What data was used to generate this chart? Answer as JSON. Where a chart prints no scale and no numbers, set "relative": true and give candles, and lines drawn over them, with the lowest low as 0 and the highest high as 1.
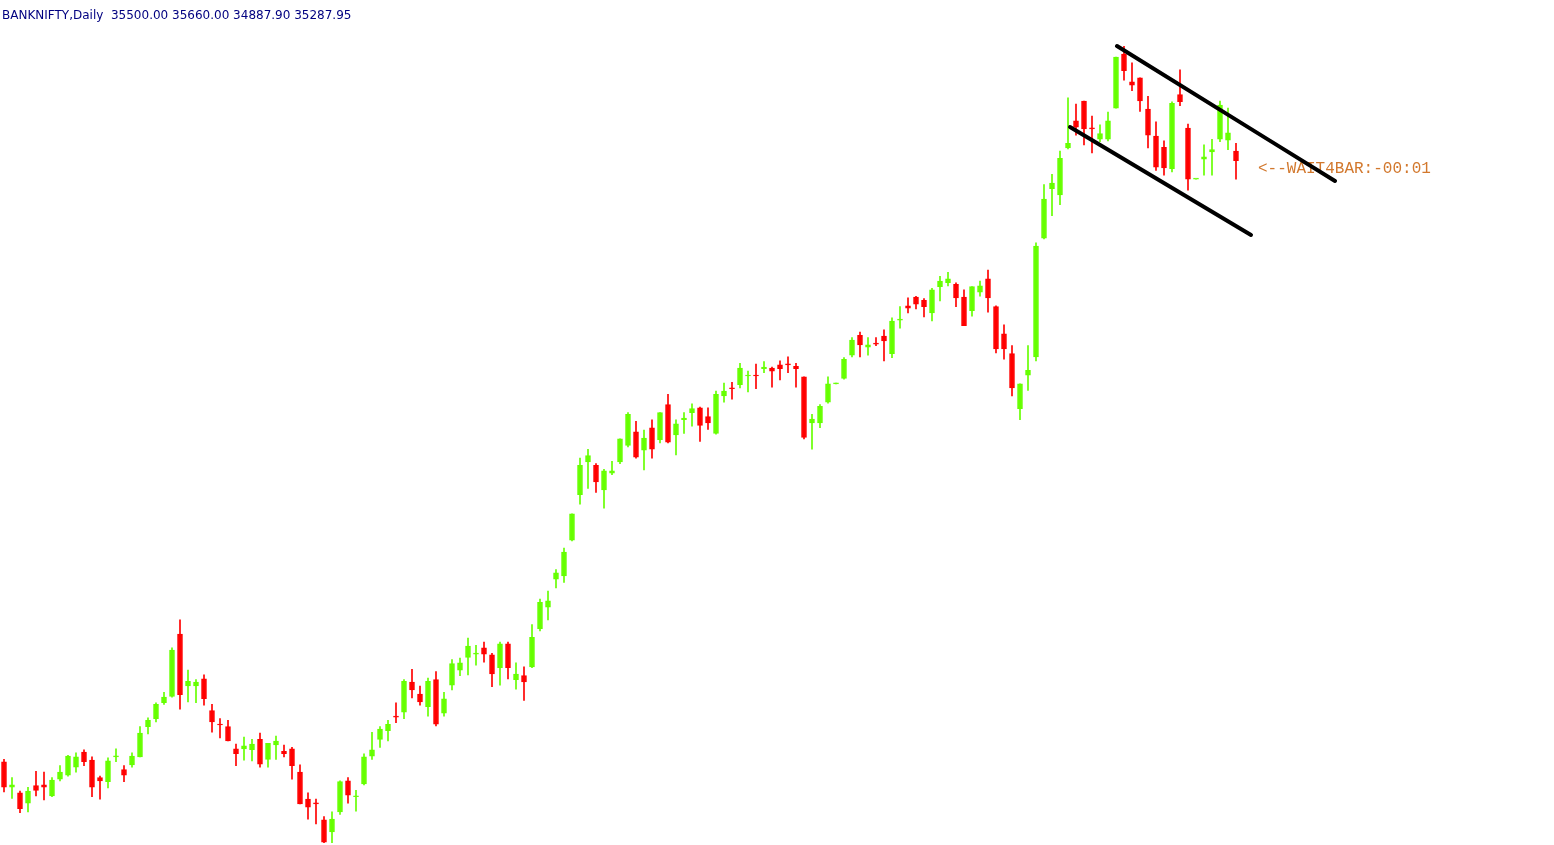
{
  "chart_data": {
    "type": "candlestick",
    "title": "BANKNIFTY,Daily  35500.00 35660.00 34887.90 35287.95",
    "annotations": [
      "<--WAIT4BAR:-00:01"
    ],
    "relative": true,
    "categories": [
      null,
      null,
      null,
      null,
      null,
      null,
      null,
      null,
      null,
      null,
      null,
      null,
      null,
      null,
      null,
      null,
      null,
      null,
      null,
      null,
      null,
      null,
      null,
      null,
      null,
      null,
      null,
      null,
      null,
      null,
      null,
      null,
      null,
      null,
      null,
      null,
      null,
      null,
      null,
      null,
      null,
      null,
      null,
      null,
      null,
      null,
      null,
      null,
      null,
      null,
      null,
      null,
      null,
      null,
      null,
      null,
      null,
      null,
      null,
      null,
      null,
      null,
      null,
      null,
      null,
      null,
      null,
      null,
      null,
      null,
      null,
      null,
      null,
      null,
      null,
      null,
      null,
      null,
      null,
      null,
      null,
      null,
      null,
      null,
      null,
      null,
      null,
      null,
      null,
      null,
      null,
      null,
      null,
      null,
      null,
      null,
      null,
      null,
      null,
      null,
      null,
      null,
      null,
      null,
      null,
      null,
      null,
      null,
      null,
      null,
      null,
      null,
      null,
      null,
      null,
      null,
      null,
      null,
      null,
      null,
      null,
      null,
      null,
      null,
      null,
      null,
      null,
      null,
      null,
      null,
      null,
      null,
      null,
      null,
      null,
      null,
      null,
      null,
      null,
      null,
      null,
      null,
      null,
      null,
      null,
      null,
      null,
      null,
      null,
      null,
      null,
      null,
      null,
      null,
      null
    ],
    "ohlc": [
      [
        0.102,
        0.105,
        0.064,
        0.07
      ],
      [
        0.07,
        0.082,
        0.056,
        0.073
      ],
      [
        0.063,
        0.065,
        0.038,
        0.043
      ],
      [
        0.05,
        0.07,
        0.039,
        0.065
      ],
      [
        0.072,
        0.09,
        0.059,
        0.066
      ],
      [
        0.073,
        0.089,
        0.054,
        0.07
      ],
      [
        0.059,
        0.082,
        0.058,
        0.079
      ],
      [
        0.08,
        0.097,
        0.078,
        0.089
      ],
      [
        0.085,
        0.11,
        0.084,
        0.109
      ],
      [
        0.095,
        0.113,
        0.089,
        0.108
      ],
      [
        0.114,
        0.117,
        0.097,
        0.102
      ],
      [
        0.104,
        0.108,
        0.058,
        0.07
      ],
      [
        0.082,
        0.084,
        0.055,
        0.078
      ],
      [
        0.077,
        0.107,
        0.069,
        0.103
      ],
      [
        0.108,
        0.118,
        0.102,
        0.109
      ],
      [
        0.092,
        0.097,
        0.077,
        0.085
      ],
      [
        0.098,
        0.113,
        0.095,
        0.109
      ],
      [
        0.108,
        0.146,
        0.108,
        0.138
      ],
      [
        0.146,
        0.157,
        0.137,
        0.154
      ],
      [
        0.156,
        0.176,
        0.152,
        0.174
      ],
      [
        0.176,
        0.189,
        0.174,
        0.183
      ],
      [
        0.184,
        0.245,
        0.183,
        0.242
      ],
      [
        0.262,
        0.28,
        0.168,
        0.186
      ],
      [
        0.197,
        0.217,
        0.177,
        0.203
      ],
      [
        0.197,
        0.205,
        0.176,
        0.202
      ],
      [
        0.206,
        0.211,
        0.173,
        0.181
      ],
      [
        0.166,
        0.174,
        0.139,
        0.152
      ],
      [
        0.149,
        0.156,
        0.132,
        0.148
      ],
      [
        0.146,
        0.154,
        0.128,
        0.128
      ],
      [
        0.118,
        0.124,
        0.097,
        0.112
      ],
      [
        0.118,
        0.133,
        0.104,
        0.122
      ],
      [
        0.117,
        0.13,
        0.103,
        0.124
      ],
      [
        0.13,
        0.138,
        0.095,
        0.099
      ],
      [
        0.105,
        0.125,
        0.095,
        0.125
      ],
      [
        0.123,
        0.134,
        0.105,
        0.128
      ],
      [
        0.115,
        0.123,
        0.108,
        0.112
      ],
      [
        0.118,
        0.12,
        0.08,
        0.097
      ],
      [
        0.089,
        0.098,
        0.049,
        0.049
      ],
      [
        0.055,
        0.063,
        0.03,
        0.045
      ],
      [
        0.05,
        0.055,
        0.024,
        0.049
      ],
      [
        0.029,
        0.033,
        0,
        0.001
      ],
      [
        0.014,
        0.039,
        0,
        0.03
      ],
      [
        0.039,
        0.078,
        0.036,
        0.077
      ],
      [
        0.078,
        0.082,
        0.05,
        0.06
      ],
      [
        0.058,
        0.066,
        0.04,
        0.059
      ],
      [
        0.074,
        0.112,
        0.073,
        0.108
      ],
      [
        0.109,
        0.139,
        0.105,
        0.117
      ],
      [
        0.13,
        0.146,
        0.12,
        0.143
      ],
      [
        0.141,
        0.154,
        0.128,
        0.149
      ],
      [
        0.159,
        0.176,
        0.151,
        0.158
      ],
      [
        0.164,
        0.205,
        0.156,
        0.203
      ],
      [
        0.202,
        0.218,
        0.182,
        0.192
      ],
      [
        0.187,
        0.197,
        0.173,
        0.177
      ],
      [
        0.171,
        0.207,
        0.159,
        0.203
      ],
      [
        0.205,
        0.215,
        0.147,
        0.149
      ],
      [
        0.163,
        0.189,
        0.159,
        0.181
      ],
      [
        0.198,
        0.23,
        0.192,
        0.225
      ],
      [
        0.217,
        0.232,
        0.21,
        0.226
      ],
      [
        0.233,
        0.257,
        0.211,
        0.247
      ],
      [
        0.237,
        0.248,
        0.223,
        0.238
      ],
      [
        0.245,
        0.252,
        0.227,
        0.237
      ],
      [
        0.236,
        0.238,
        0.196,
        0.212
      ],
      [
        0.22,
        0.252,
        0.198,
        0.25
      ],
      [
        0.25,
        0.252,
        0.206,
        0.22
      ],
      [
        0.205,
        0.226,
        0.193,
        0.212
      ],
      [
        0.21,
        0.221,
        0.179,
        0.202
      ],
      [
        0.221,
        0.274,
        0.22,
        0.258
      ],
      [
        0.269,
        0.306,
        0.266,
        0.302
      ],
      [
        0.296,
        0.316,
        0.28,
        0.304
      ],
      [
        0.331,
        0.343,
        0.32,
        0.339
      ],
      [
        0.335,
        0.37,
        0.327,
        0.365
      ],
      [
        0.38,
        0.413,
        0.379,
        0.413
      ],
      [
        0.437,
        0.483,
        0.425,
        0.474
      ],
      [
        0.478,
        0.494,
        0.445,
        0.486
      ],
      [
        0.474,
        0.476,
        0.44,
        0.453
      ],
      [
        0.443,
        0.469,
        0.42,
        0.467
      ],
      [
        0.464,
        0.479,
        0.462,
        0.467
      ],
      [
        0.478,
        0.507,
        0.476,
        0.507
      ],
      [
        0.499,
        0.54,
        0.497,
        0.538
      ],
      [
        0.516,
        0.529,
        0.483,
        0.484
      ],
      [
        0.493,
        0.518,
        0.468,
        0.508
      ],
      [
        0.521,
        0.531,
        0.483,
        0.494
      ],
      [
        0.506,
        0.54,
        0.502,
        0.54
      ],
      [
        0.55,
        0.563,
        0.502,
        0.503
      ],
      [
        0.512,
        0.531,
        0.487,
        0.526
      ],
      [
        0.531,
        0.54,
        0.514,
        0.533
      ],
      [
        0.54,
        0.551,
        0.523,
        0.545
      ],
      [
        0.546,
        0.547,
        0.504,
        0.524
      ],
      [
        0.535,
        0.546,
        0.519,
        0.527
      ],
      [
        0.514,
        0.567,
        0.513,
        0.563
      ],
      [
        0.561,
        0.577,
        0.553,
        0.567
      ],
      [
        0.571,
        0.578,
        0.557,
        0.57
      ],
      [
        0.575,
        0.602,
        0.571,
        0.596
      ],
      [
        0.586,
        0.592,
        0.566,
        0.587
      ],
      [
        0.587,
        0.601,
        0.57,
        0.586
      ],
      [
        0.595,
        0.604,
        0.59,
        0.597
      ],
      [
        0.596,
        0.597,
        0.572,
        0.592
      ],
      [
        0.6,
        0.605,
        0.581,
        0.595
      ],
      [
        0.601,
        0.61,
        0.59,
        0.6
      ],
      [
        0.598,
        0.602,
        0.572,
        0.595
      ],
      [
        0.585,
        0.585,
        0.507,
        0.509
      ],
      [
        0.527,
        0.538,
        0.494,
        0.532
      ],
      [
        0.527,
        0.55,
        0.521,
        0.548
      ],
      [
        0.553,
        0.585,
        0.552,
        0.576
      ],
      [
        0.576,
        0.577,
        0.576,
        0.577
      ],
      [
        0.583,
        0.609,
        0.582,
        0.607
      ],
      [
        0.612,
        0.634,
        0.61,
        0.631
      ],
      [
        0.637,
        0.641,
        0.61,
        0.625
      ],
      [
        0.622,
        0.634,
        0.612,
        0.625
      ],
      [
        0.627,
        0.634,
        0.624,
        0.626
      ],
      [
        0.636,
        0.644,
        0.605,
        0.63
      ],
      [
        0.614,
        0.659,
        0.609,
        0.655
      ],
      [
        0.656,
        0.673,
        0.646,
        0.657
      ],
      [
        0.674,
        0.684,
        0.665,
        0.671
      ],
      [
        0.685,
        0.686,
        0.67,
        0.676
      ],
      [
        0.681,
        0.683,
        0.66,
        0.673
      ],
      [
        0.665,
        0.696,
        0.655,
        0.694
      ],
      [
        0.698,
        0.711,
        0.68,
        0.705
      ],
      [
        0.703,
        0.716,
        0.699,
        0.708
      ],
      [
        0.701,
        0.703,
        0.673,
        0.684
      ],
      [
        0.685,
        0.694,
        0.649,
        0.649
      ],
      [
        0.668,
        0.698,
        0.661,
        0.698
      ],
      [
        0.691,
        0.705,
        0.686,
        0.699
      ],
      [
        0.708,
        0.719,
        0.666,
        0.684
      ],
      [
        0.673,
        0.674,
        0.615,
        0.62
      ],
      [
        0.639,
        0.65,
        0.607,
        0.62
      ],
      [
        0.614,
        0.624,
        0.561,
        0.571
      ],
      [
        0.545,
        0.576,
        0.531,
        0.576
      ],
      [
        0.587,
        0.624,
        0.568,
        0.593
      ],
      [
        0.61,
        0.753,
        0.605,
        0.749
      ],
      [
        0.759,
        0.826,
        0.758,
        0.808
      ],
      [
        0.821,
        0.839,
        0.787,
        0.828
      ],
      [
        0.813,
        0.868,
        0.801,
        0.859
      ],
      [
        0.872,
        0.935,
        0.871,
        0.878
      ],
      [
        0.906,
        0.927,
        0.888,
        0.898
      ],
      [
        0.931,
        0.931,
        0.876,
        0.896
      ],
      [
        0.897,
        0.912,
        0.866,
        0.896
      ],
      [
        0.883,
        0.901,
        0.88,
        0.89
      ],
      [
        0.883,
        0.917,
        0.881,
        0.906
      ],
      [
        0.922,
        0.986,
        0.922,
        0.986
      ],
      [
        0.99,
        1,
        0.957,
        0.969
      ],
      [
        0.955,
        0.979,
        0.944,
        0.951
      ],
      [
        0.96,
        0.96,
        0.918,
        0.931
      ],
      [
        0.921,
        0.937,
        0.872,
        0.888
      ],
      [
        0.887,
        0.905,
        0.844,
        0.848
      ],
      [
        0.873,
        0.881,
        0.838,
        0.847
      ],
      [
        0.846,
        0.93,
        0.842,
        0.928
      ],
      [
        0.939,
        0.97,
        0.925,
        0.93
      ],
      [
        0.897,
        0.902,
        0.819,
        0.833
      ],
      [
        0.833,
        0.833,
        0.833,
        0.833
      ],
      [
        0.858,
        0.876,
        0.838,
        0.861
      ],
      [
        0.867,
        0.883,
        0.838,
        0.87
      ],
      [
        0.883,
        0.931,
        0.88,
        0.926
      ],
      [
        0.882,
        0.922,
        0.87,
        0.891
      ],
      [
        0.868,
        0.878,
        0.833,
        0.856
      ]
    ],
    "colors": [
      "#ff0000",
      "#66ff00",
      "#ff0000",
      "#66ff00",
      "#ff0000",
      "#ff0000",
      "#66ff00",
      "#66ff00",
      "#66ff00",
      "#66ff00",
      "#ff0000",
      "#ff0000",
      "#ff0000",
      "#66ff00",
      "#66ff00",
      "#ff0000",
      "#66ff00",
      "#66ff00",
      "#66ff00",
      "#66ff00",
      "#66ff00",
      "#66ff00",
      "#ff0000",
      "#66ff00",
      "#66ff00",
      "#ff0000",
      "#ff0000",
      "#ff0000",
      "#ff0000",
      "#ff0000",
      "#66ff00",
      "#66ff00",
      "#ff0000",
      "#66ff00",
      "#66ff00",
      "#ff0000",
      "#ff0000",
      "#ff0000",
      "#ff0000",
      "#ff0000",
      "#ff0000",
      "#66ff00",
      "#66ff00",
      "#ff0000",
      "#66ff00",
      "#66ff00",
      "#66ff00",
      "#66ff00",
      "#66ff00",
      "#ff0000",
      "#66ff00",
      "#ff0000",
      "#ff0000",
      "#66ff00",
      "#ff0000",
      "#66ff00",
      "#66ff00",
      "#66ff00",
      "#66ff00",
      "#66ff00",
      "#ff0000",
      "#ff0000",
      "#66ff00",
      "#ff0000",
      "#66ff00",
      "#ff0000",
      "#66ff00",
      "#66ff00",
      "#66ff00",
      "#66ff00",
      "#66ff00",
      "#66ff00",
      "#66ff00",
      "#66ff00",
      "#ff0000",
      "#66ff00",
      "#66ff00",
      "#66ff00",
      "#66ff00",
      "#ff0000",
      "#66ff00",
      "#ff0000",
      "#66ff00",
      "#ff0000",
      "#66ff00",
      "#66ff00",
      "#66ff00",
      "#ff0000",
      "#ff0000",
      "#66ff00",
      "#66ff00",
      "#ff0000",
      "#66ff00",
      "#66ff00",
      "#ff0000",
      "#66ff00",
      "#ff0000",
      "#ff0000",
      "#ff0000",
      "#ff0000",
      "#ff0000",
      "#66ff00",
      "#66ff00",
      "#66ff00",
      "#66ff00",
      "#66ff00",
      "#66ff00",
      "#ff0000",
      "#66ff00",
      "#ff0000",
      "#ff0000",
      "#66ff00",
      "#66ff00",
      "#ff0000",
      "#ff0000",
      "#ff0000",
      "#66ff00",
      "#66ff00",
      "#66ff00",
      "#ff0000",
      "#ff0000",
      "#66ff00",
      "#66ff00",
      "#ff0000",
      "#ff0000",
      "#ff0000",
      "#ff0000",
      "#66ff00",
      "#66ff00",
      "#66ff00",
      "#66ff00",
      "#66ff00",
      "#66ff00",
      "#66ff00",
      "#ff0000",
      "#ff0000",
      "#ff0000",
      "#66ff00",
      "#66ff00",
      "#66ff00",
      "#ff0000",
      "#ff0000",
      "#ff0000",
      "#ff0000",
      "#ff0000",
      "#ff0000",
      "#66ff00",
      "#ff0000",
      "#ff0000",
      "#66ff00",
      "#66ff00",
      "#66ff00",
      "#66ff00",
      "#66ff00",
      "#ff0000"
    ]
  }
}
